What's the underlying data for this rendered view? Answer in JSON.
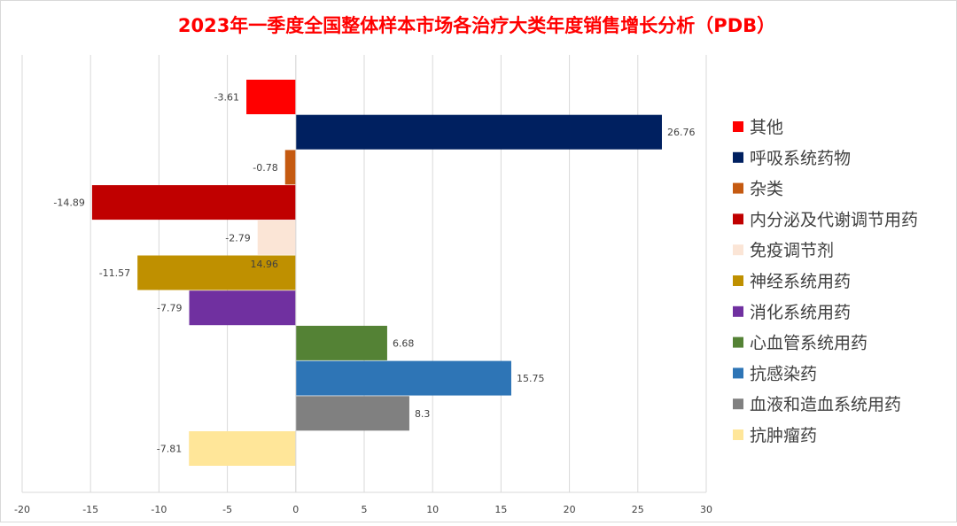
{
  "chart_data": {
    "type": "bar",
    "orientation": "horizontal",
    "title": "2023年一季度全国整体样本市场各治疗大类年度销售增长分析（PDB）",
    "xlabel": "",
    "ylabel": "",
    "xlim": [
      -20,
      30
    ],
    "x_ticks": [
      "-20",
      "-15",
      "-10",
      "-5",
      "0",
      "5",
      "10",
      "15",
      "20",
      "25",
      "30"
    ],
    "grid": true,
    "legend_position": "right",
    "series": [
      {
        "name": "其他",
        "value": -3.61,
        "label": "-3.61",
        "color": "#ff0000"
      },
      {
        "name": "呼吸系统药物",
        "value": 26.76,
        "label": "26.76",
        "color": "#002060"
      },
      {
        "name": "杂类",
        "value": -0.78,
        "label": "-0.78",
        "color": "#c55a11"
      },
      {
        "name": "内分泌及代谢调节用药",
        "value": -14.89,
        "label": "-14.89",
        "color": "#c00000"
      },
      {
        "name": "免疫调节剂",
        "value": -2.79,
        "label": "-2.79",
        "color": "#fbe5d6"
      },
      {
        "name": "神经系统用药",
        "value": -11.57,
        "label": "-11.57",
        "color": "#bf9000"
      },
      {
        "name": "消化系统用药",
        "value": -7.79,
        "label": "-7.79",
        "color": "#7030a0"
      },
      {
        "name": "心血管系统用药",
        "value": 6.68,
        "label": "6.68",
        "color": "#548235"
      },
      {
        "name": "抗感染药",
        "value": 15.75,
        "label": "15.75",
        "color": "#2e75b6"
      },
      {
        "name": "血液和造血系统用药",
        "value": 8.3,
        "label": "8.3",
        "color": "#808080"
      },
      {
        "name": "抗肿瘤药",
        "value": -7.81,
        "label": "-7.81",
        "color": "#ffe699"
      }
    ],
    "annotations": [
      {
        "text": "14.96",
        "x": -2.3,
        "near_series": "神经系统用药"
      }
    ]
  },
  "colors": {
    "title": "#ff0000",
    "grid": "#d9d9d9",
    "label_text": "#404040",
    "frame": "#d9d9d9"
  }
}
